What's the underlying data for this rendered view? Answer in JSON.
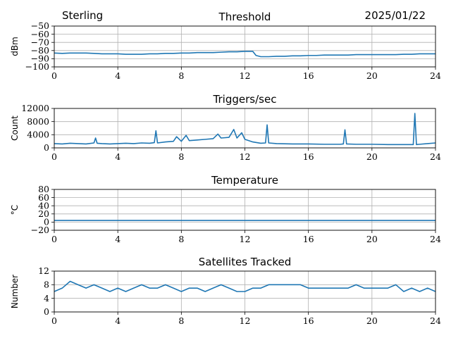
{
  "header": {
    "station": "Sterling",
    "date": "2025/01/22"
  },
  "chart_data": [
    {
      "id": "threshold",
      "type": "line",
      "title": "Threshold",
      "ylabel": "dBm",
      "xlabel": "",
      "xlim": [
        0,
        24
      ],
      "ylim": [
        -100,
        -50
      ],
      "xticks": [
        "0",
        "4",
        "8",
        "12",
        "16",
        "20",
        "24"
      ],
      "yticks": [
        "−100",
        "−90",
        "−80",
        "−70",
        "−60",
        "−50"
      ],
      "ytick_values": [
        -100,
        -90,
        -80,
        -70,
        -60,
        -50
      ],
      "grid": true,
      "color": "#1f77b4",
      "x": [
        0,
        0.5,
        1,
        1.5,
        2,
        2.5,
        3,
        3.5,
        4,
        4.5,
        5,
        5.5,
        6,
        6.5,
        7,
        7.5,
        8,
        8.5,
        9,
        9.5,
        10,
        10.5,
        11,
        11.5,
        12,
        12.5,
        12.7,
        13,
        13.5,
        14,
        14.5,
        15,
        15.5,
        16,
        16.5,
        17,
        17.5,
        18,
        18.5,
        19,
        19.5,
        20,
        20.5,
        21,
        21.5,
        22,
        22.5,
        23,
        23.5,
        24
      ],
      "y": [
        -83,
        -83.5,
        -83,
        -83,
        -83,
        -83.5,
        -84,
        -84,
        -84,
        -84.5,
        -84.5,
        -84.5,
        -84,
        -84,
        -83.5,
        -83.5,
        -83,
        -83,
        -82.5,
        -82.5,
        -82.5,
        -82,
        -81.5,
        -81.5,
        -81,
        -81,
        -86,
        -87.5,
        -87.5,
        -87,
        -87,
        -86.5,
        -86.5,
        -86,
        -86,
        -85.5,
        -85.5,
        -85.5,
        -85.5,
        -85,
        -85,
        -85,
        -85,
        -85,
        -85,
        -84.5,
        -84.5,
        -84,
        -84,
        -84
      ]
    },
    {
      "id": "triggers",
      "type": "line",
      "title": "Triggers/sec",
      "ylabel": "Count",
      "xlabel": "",
      "xlim": [
        0,
        24
      ],
      "ylim": [
        0,
        12000
      ],
      "xticks": [
        "0",
        "4",
        "8",
        "12",
        "16",
        "20",
        "24"
      ],
      "yticks": [
        "0",
        "4000",
        "8000",
        "12000"
      ],
      "ytick_values": [
        0,
        4000,
        8000,
        12000
      ],
      "grid": true,
      "color": "#1f77b4",
      "x": [
        0,
        0.5,
        1,
        1.5,
        2,
        2.5,
        2.6,
        2.7,
        3,
        3.5,
        4,
        4.5,
        5,
        5.5,
        6,
        6.3,
        6.4,
        6.5,
        7,
        7.5,
        7.7,
        8,
        8.3,
        8.5,
        9,
        9.5,
        10,
        10.3,
        10.5,
        11,
        11.3,
        11.5,
        11.8,
        12,
        12.5,
        13,
        13.3,
        13.4,
        13.5,
        14,
        15,
        16,
        17,
        18,
        18.2,
        18.3,
        18.4,
        19,
        20,
        21,
        22,
        22.6,
        22.7,
        22.8,
        23,
        23.5,
        24
      ],
      "y": [
        1300,
        1200,
        1400,
        1300,
        1200,
        1500,
        3000,
        1400,
        1300,
        1200,
        1300,
        1400,
        1300,
        1500,
        1400,
        1600,
        5200,
        1500,
        1800,
        2000,
        3400,
        2000,
        3800,
        2200,
        2400,
        2600,
        2800,
        4200,
        3000,
        3200,
        5600,
        3000,
        4600,
        2600,
        1800,
        1400,
        1500,
        7000,
        1500,
        1300,
        1200,
        1200,
        1100,
        1100,
        1200,
        5500,
        1200,
        1100,
        1100,
        1000,
        1000,
        1000,
        10500,
        1000,
        1100,
        1300,
        1500
      ]
    },
    {
      "id": "temperature",
      "type": "line",
      "title": "Temperature",
      "ylabel": "°C",
      "xlabel": "",
      "xlim": [
        0,
        24
      ],
      "ylim": [
        -20,
        80
      ],
      "xticks": [
        "0",
        "4",
        "8",
        "12",
        "16",
        "20",
        "24"
      ],
      "yticks": [
        "−20",
        "0",
        "20",
        "40",
        "60",
        "80"
      ],
      "ytick_values": [
        -20,
        0,
        20,
        40,
        60,
        80
      ],
      "grid": true,
      "color": "#1f77b4",
      "x": [
        0,
        24
      ],
      "y": [
        4,
        4
      ]
    },
    {
      "id": "satellites",
      "type": "line",
      "title": "Satellites Tracked",
      "ylabel": "Number",
      "xlabel": "",
      "xlim": [
        0,
        24
      ],
      "ylim": [
        0,
        12
      ],
      "xticks": [
        "0",
        "4",
        "8",
        "12",
        "16",
        "20",
        "24"
      ],
      "yticks": [
        "0",
        "4",
        "8",
        "12"
      ],
      "ytick_values": [
        0,
        4,
        8,
        12
      ],
      "grid": true,
      "color": "#1f77b4",
      "x": [
        0,
        0.5,
        1,
        1.5,
        2,
        2.5,
        3,
        3.5,
        4,
        4.5,
        5,
        5.5,
        6,
        6.5,
        7,
        7.5,
        8,
        8.5,
        9,
        9.5,
        10,
        10.5,
        11,
        11.5,
        12,
        12.5,
        13,
        13.5,
        14,
        14.5,
        15,
        15.5,
        16,
        16.5,
        17,
        17.5,
        18,
        18.5,
        19,
        19.5,
        20,
        20.5,
        21,
        21.5,
        22,
        22.5,
        23,
        23.5,
        24
      ],
      "y": [
        6,
        7,
        9,
        8,
        7,
        8,
        7,
        6,
        7,
        6,
        7,
        8,
        7,
        7,
        8,
        7,
        6,
        7,
        7,
        6,
        7,
        8,
        7,
        6,
        6,
        7,
        7,
        8,
        8,
        8,
        8,
        8,
        7,
        7,
        7,
        7,
        7,
        7,
        8,
        7,
        7,
        7,
        7,
        8,
        6,
        7,
        6,
        7,
        6
      ]
    }
  ]
}
